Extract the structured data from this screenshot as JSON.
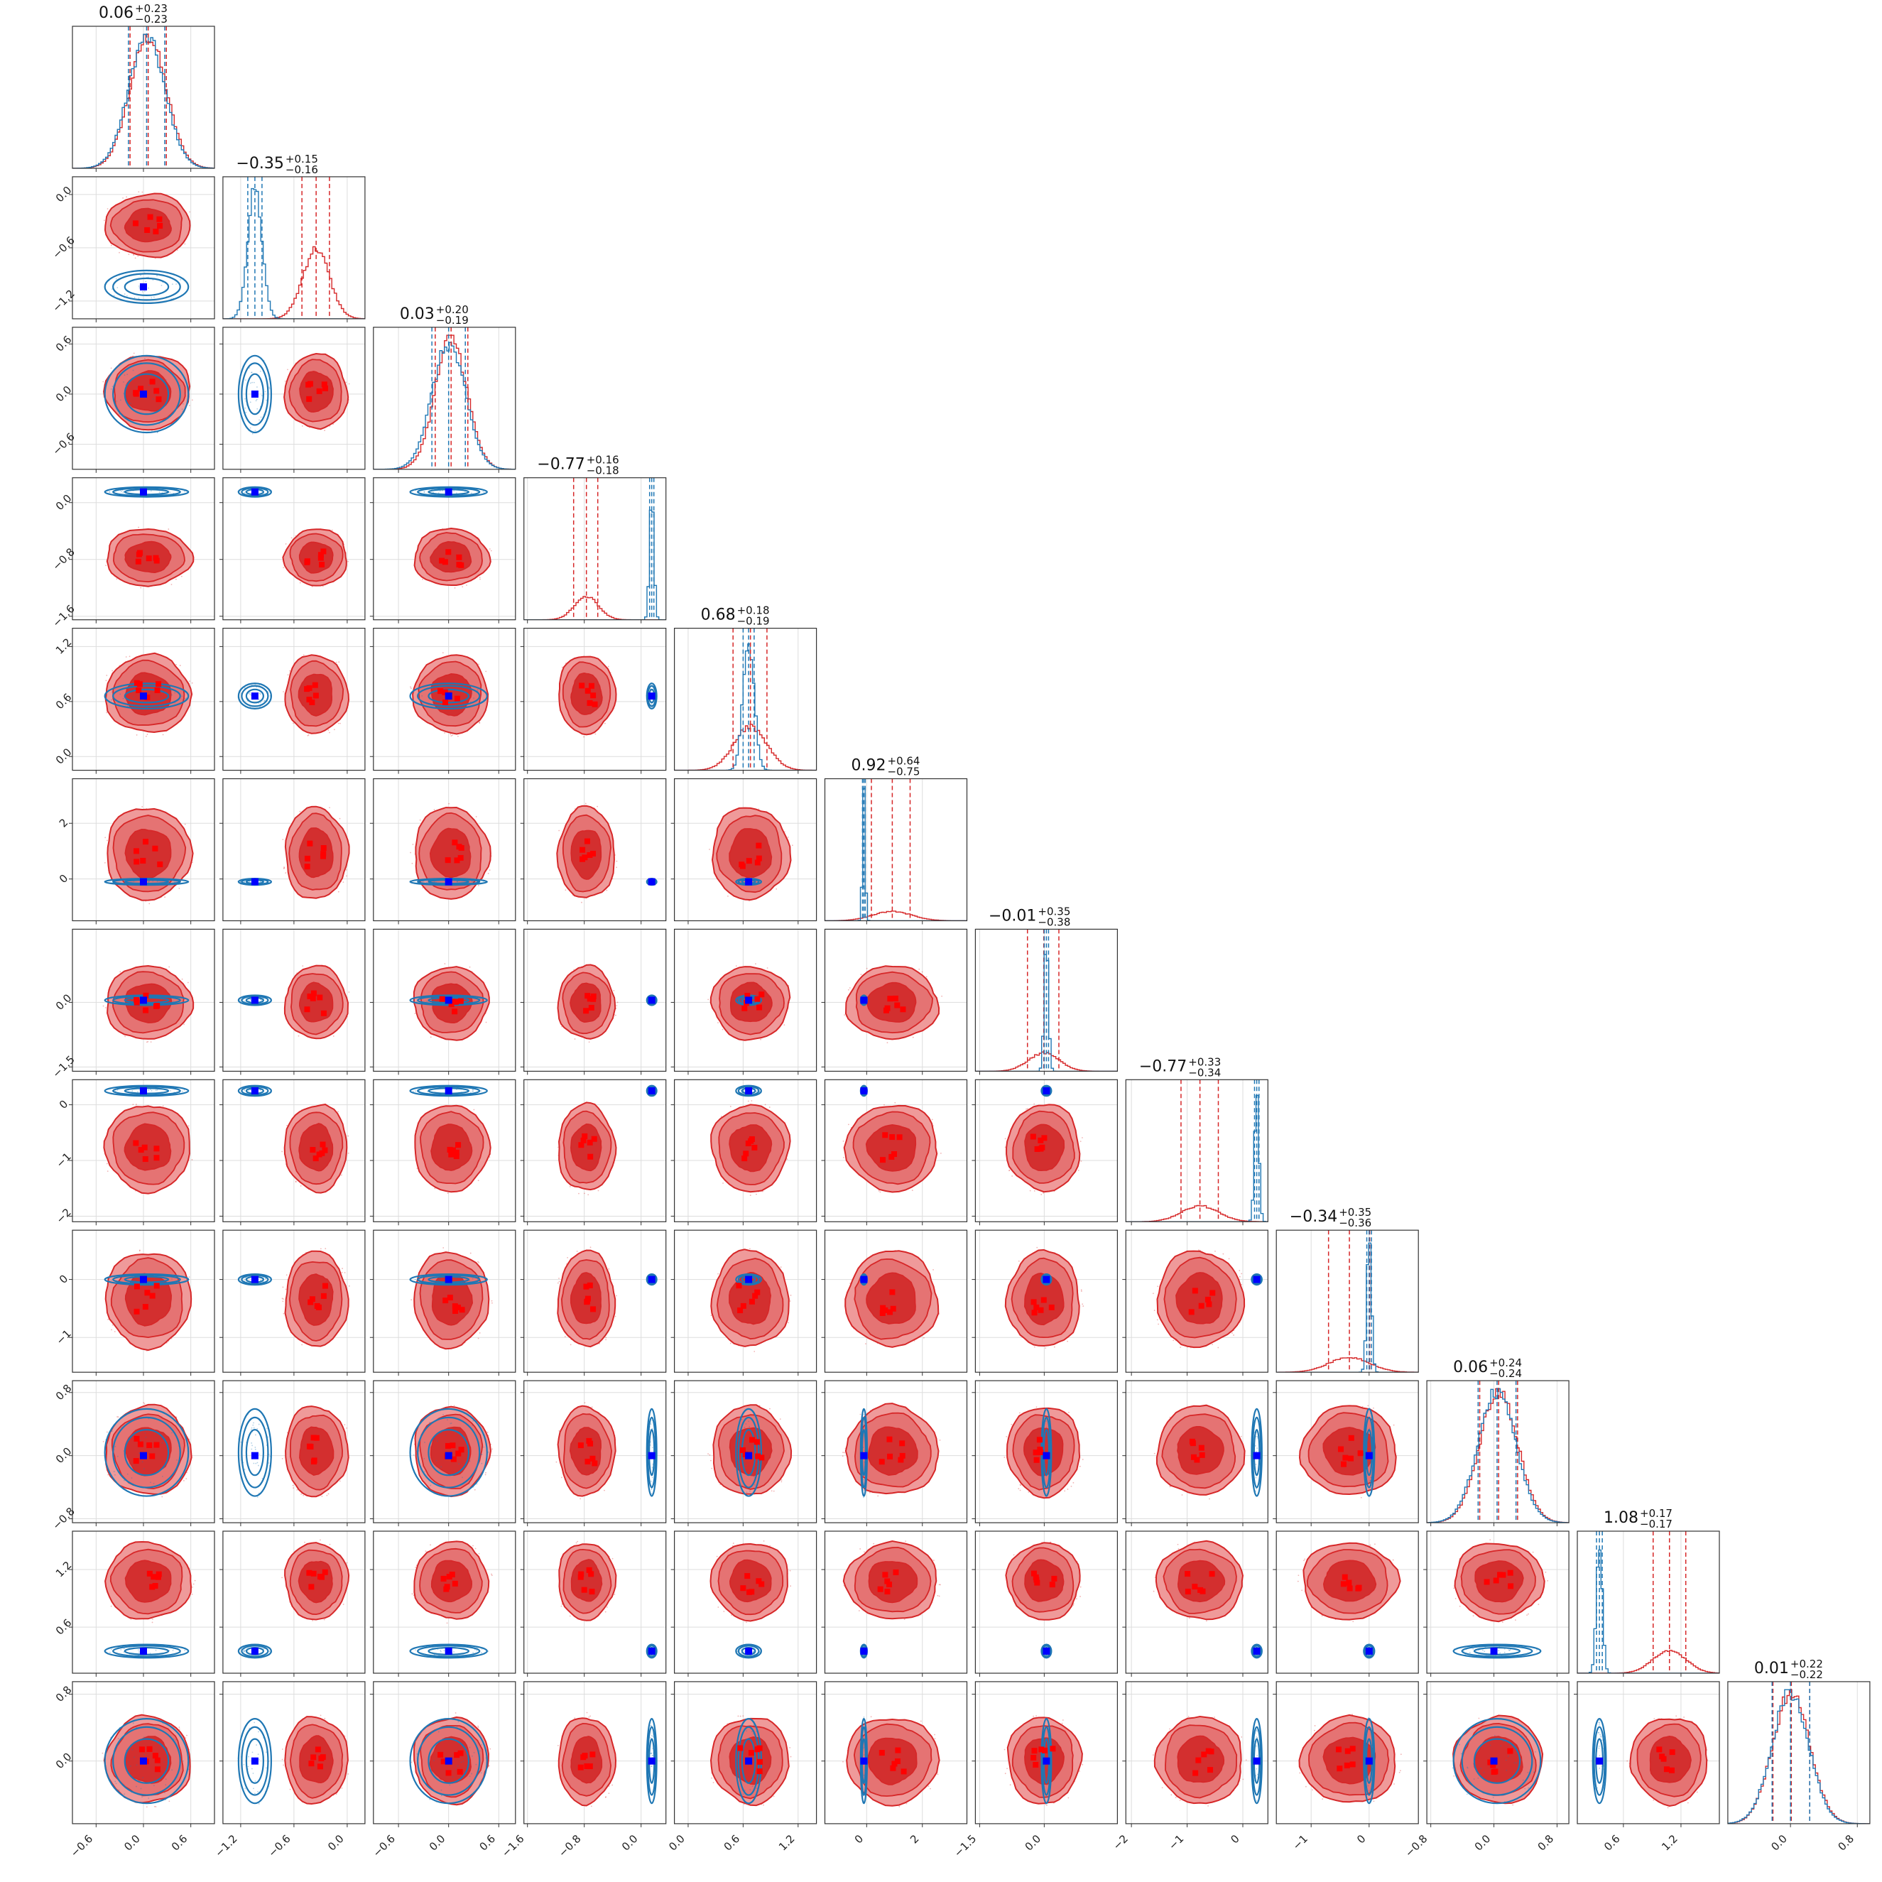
{
  "chart_data": {
    "type": "corner",
    "n_params": 12,
    "grid": true,
    "series": [
      {
        "name": "",
        "color": "#1f77b4",
        "style": "contour-lines"
      },
      {
        "name": "",
        "color": "#d62728",
        "style": "filled-contours"
      }
    ],
    "params": [
      {
        "title": "0.06",
        "plus": "+0.23",
        "minus": "−0.23",
        "range": [
          -0.9,
          0.9
        ],
        "ticks": [
          {
            "v": -0.6,
            "t": "−0.6"
          },
          {
            "v": 0.0,
            "t": "0.0"
          },
          {
            "v": 0.6,
            "t": "0.6"
          }
        ],
        "blue": {
          "mean": 0.04,
          "sd": 0.23,
          "mark": 0.0
        },
        "red": {
          "mean": 0.06,
          "sd": 0.23,
          "mark": 0.0
        },
        "blue_q": [
          -0.19,
          0.04,
          0.27
        ],
        "red_q": [
          -0.17,
          0.06,
          0.29
        ]
      },
      {
        "title": "−0.35",
        "plus": "+0.15",
        "minus": "−0.16",
        "range": [
          -1.4,
          0.2
        ],
        "ticks": [
          {
            "v": -1.2,
            "t": "−1.2"
          },
          {
            "v": -0.6,
            "t": "−0.6"
          },
          {
            "v": 0.0,
            "t": "0.0"
          }
        ],
        "blue": {
          "mean": -1.04,
          "sd": 0.08,
          "mark": -1.04
        },
        "red": {
          "mean": -0.35,
          "sd": 0.15,
          "mark": -0.35
        },
        "blue_q": [
          -1.12,
          -1.04,
          -0.96
        ],
        "red_q": [
          -0.51,
          -0.35,
          -0.2
        ]
      },
      {
        "title": "0.03",
        "plus": "+0.20",
        "minus": "−0.19",
        "range": [
          -0.9,
          0.8
        ],
        "ticks": [
          {
            "v": -0.6,
            "t": "−0.6"
          },
          {
            "v": 0.0,
            "t": "0.0"
          },
          {
            "v": 0.6,
            "t": "0.6"
          }
        ],
        "blue": {
          "mean": 0.0,
          "sd": 0.2,
          "mark": 0.0
        },
        "red": {
          "mean": 0.03,
          "sd": 0.19,
          "mark": 0.0
        },
        "blue_q": [
          -0.2,
          0.0,
          0.2
        ],
        "red_q": [
          -0.16,
          0.03,
          0.23
        ]
      },
      {
        "title": "−0.77",
        "plus": "+0.16",
        "minus": "−0.18",
        "range": [
          -1.65,
          0.35
        ],
        "ticks": [
          {
            "v": -1.6,
            "t": "−1.6"
          },
          {
            "v": -0.8,
            "t": "−0.8"
          },
          {
            "v": 0.0,
            "t": "0.0"
          }
        ],
        "blue": {
          "mean": 0.15,
          "sd": 0.03,
          "mark": 0.15
        },
        "red": {
          "mean": -0.77,
          "sd": 0.17,
          "mark": -0.78
        },
        "blue_q": [
          0.12,
          0.15,
          0.18
        ],
        "red_q": [
          -0.95,
          -0.77,
          -0.61
        ]
      },
      {
        "title": "0.68",
        "plus": "+0.18",
        "minus": "−0.19",
        "range": [
          -0.15,
          1.4
        ],
        "ticks": [
          {
            "v": 0.0,
            "t": "0.0"
          },
          {
            "v": 0.6,
            "t": "0.6"
          },
          {
            "v": 1.2,
            "t": "1.2"
          }
        ],
        "blue": {
          "mean": 0.66,
          "sd": 0.06,
          "mark": 0.66
        },
        "red": {
          "mean": 0.68,
          "sd": 0.18,
          "mark": 0.68
        },
        "blue_q": [
          0.6,
          0.66,
          0.72
        ],
        "red_q": [
          0.49,
          0.68,
          0.86
        ]
      },
      {
        "title": "0.92",
        "plus": "+0.64",
        "minus": "−0.75",
        "range": [
          -1.5,
          3.6
        ],
        "ticks": [
          {
            "v": 0.0,
            "t": "0"
          },
          {
            "v": 2.0,
            "t": "2"
          }
        ],
        "blue": {
          "mean": -0.1,
          "sd": 0.05,
          "mark": -0.1
        },
        "red": {
          "mean": 0.92,
          "sd": 0.7,
          "mark": 0.92
        },
        "blue_q": [
          -0.15,
          -0.1,
          -0.05
        ],
        "red_q": [
          0.17,
          0.92,
          1.56
        ]
      },
      {
        "title": "−0.01",
        "plus": "+0.35",
        "minus": "−0.38",
        "range": [
          -1.6,
          1.7
        ],
        "ticks": [
          {
            "v": -1.5,
            "t": "−1.5"
          },
          {
            "v": 0.0,
            "t": "0.0"
          }
        ],
        "blue": {
          "mean": 0.05,
          "sd": 0.05,
          "mark": 0.05
        },
        "red": {
          "mean": -0.01,
          "sd": 0.36,
          "mark": -0.01
        },
        "blue_q": [
          0.0,
          0.05,
          0.1
        ],
        "red_q": [
          -0.39,
          -0.01,
          0.34
        ]
      },
      {
        "title": "−0.77",
        "plus": "+0.33",
        "minus": "−0.34",
        "range": [
          -2.1,
          0.45
        ],
        "ticks": [
          {
            "v": -2.0,
            "t": "−2"
          },
          {
            "v": -1.0,
            "t": "−1"
          },
          {
            "v": 0.0,
            "t": "0"
          }
        ],
        "blue": {
          "mean": 0.25,
          "sd": 0.04,
          "mark": 0.25
        },
        "red": {
          "mean": -0.77,
          "sd": 0.33,
          "mark": -0.77
        },
        "blue_q": [
          0.21,
          0.25,
          0.29
        ],
        "red_q": [
          -1.11,
          -0.77,
          -0.44
        ]
      },
      {
        "title": "−0.34",
        "plus": "+0.35",
        "minus": "−0.36",
        "range": [
          -1.6,
          0.85
        ],
        "ticks": [
          {
            "v": -1.0,
            "t": "−1"
          },
          {
            "v": 0.0,
            "t": "0"
          }
        ],
        "blue": {
          "mean": 0.0,
          "sd": 0.04,
          "mark": 0.0
        },
        "red": {
          "mean": -0.34,
          "sd": 0.35,
          "mark": -0.34
        },
        "blue_q": [
          -0.04,
          0.0,
          0.04
        ],
        "red_q": [
          -0.7,
          -0.34,
          0.01
        ]
      },
      {
        "title": "0.06",
        "plus": "+0.24",
        "minus": "−0.24",
        "range": [
          -0.85,
          0.95
        ],
        "ticks": [
          {
            "v": -0.8,
            "t": "−0.8"
          },
          {
            "v": 0.0,
            "t": "0.0"
          },
          {
            "v": 0.8,
            "t": "0.8"
          }
        ],
        "blue": {
          "mean": 0.04,
          "sd": 0.24,
          "mark": 0.0
        },
        "red": {
          "mean": 0.06,
          "sd": 0.24,
          "mark": 0.0
        },
        "blue_q": [
          -0.2,
          0.04,
          0.28
        ],
        "red_q": [
          -0.18,
          0.06,
          0.3
        ]
      },
      {
        "title": "1.08",
        "plus": "+0.17",
        "minus": "−0.17",
        "range": [
          0.12,
          1.6
        ],
        "ticks": [
          {
            "v": 0.6,
            "t": "0.6"
          },
          {
            "v": 1.2,
            "t": "1.2"
          }
        ],
        "blue": {
          "mean": 0.35,
          "sd": 0.03,
          "mark": 0.35
        },
        "red": {
          "mean": 1.08,
          "sd": 0.17,
          "mark": 1.08
        },
        "blue_q": [
          0.32,
          0.35,
          0.38
        ],
        "red_q": [
          0.91,
          1.08,
          1.25
        ]
      },
      {
        "title": "0.01",
        "plus": "+0.22",
        "minus": "−0.22",
        "range": [
          -0.75,
          0.95
        ],
        "ticks": [
          {
            "v": 0.0,
            "t": "0.0"
          },
          {
            "v": 0.8,
            "t": "0.8"
          }
        ],
        "blue": {
          "mean": 0.0,
          "sd": 0.22,
          "mark": 0.0
        },
        "red": {
          "mean": 0.01,
          "sd": 0.22,
          "mark": 0.0
        },
        "blue_q": [
          -0.22,
          0.0,
          0.23
        ],
        "red_q": [
          -0.21,
          0.01,
          0.23
        ]
      }
    ]
  }
}
